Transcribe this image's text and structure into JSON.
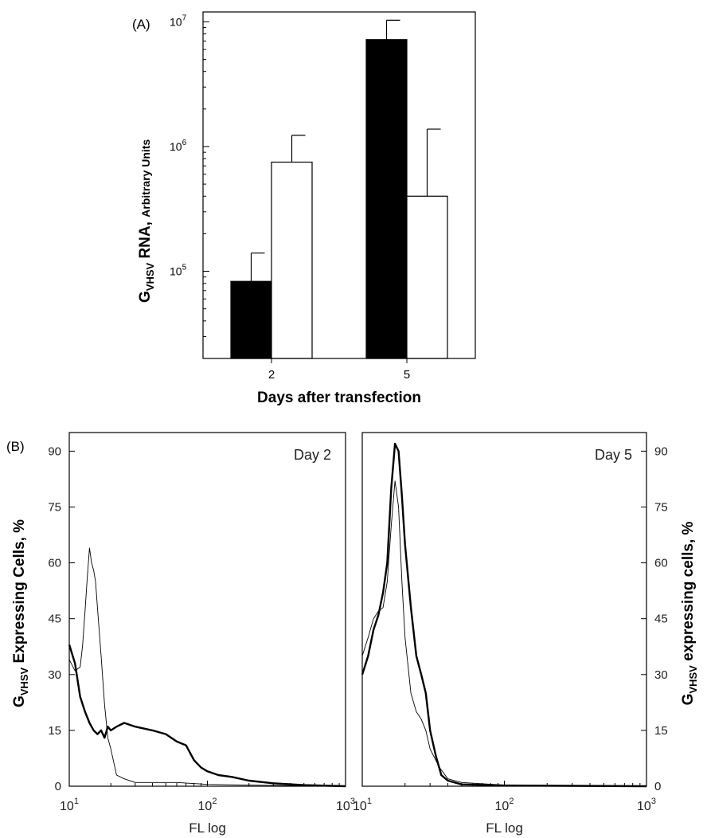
{
  "chart_data": [
    {
      "panel_label": "(A)",
      "type": "bar",
      "categories": [
        "2",
        "5"
      ],
      "yscale": "log",
      "ylim": [
        20000,
        12000000
      ],
      "ytick_values": [
        100000,
        1000000,
        10000000
      ],
      "ytick_base": "10",
      "ytick_exponents": [
        "5",
        "6",
        "7"
      ],
      "ylabel": {
        "main": "G",
        "sub": "VHSV",
        "rest": " RNA, ",
        "small": "Arbitrary Units"
      },
      "xlabel": "Days after transfection",
      "series": [
        {
          "fill": "#000000",
          "values": [
            83000,
            7200000
          ],
          "error_upper": [
            140000,
            10300000
          ]
        },
        {
          "fill": "#ffffff",
          "values": [
            750000,
            400000
          ],
          "error_upper": [
            1230000,
            1380000
          ]
        }
      ]
    },
    {
      "panel_label": "(B)",
      "type": "line",
      "annotation": "Day 2",
      "xscale": "log",
      "xlim": [
        10,
        1000
      ],
      "ylim": [
        0,
        95
      ],
      "xtick_values": [
        10,
        100,
        1000
      ],
      "xtick_exponents": [
        "1",
        "2",
        "3"
      ],
      "ytick_values": [
        0,
        15,
        30,
        45,
        60,
        75,
        90
      ],
      "xlabel": "FL log",
      "ylabel": {
        "main": "G",
        "sub": "VHSV",
        "rest": " Expressing Cells, %"
      },
      "series": [
        {
          "style": "thin",
          "x": [
            10,
            11,
            12,
            12.5,
            13,
            13.5,
            14,
            14.5,
            15,
            15.5,
            16,
            17,
            18,
            19,
            20,
            22,
            25,
            30,
            40,
            60,
            100,
            200,
            1000
          ],
          "y": [
            34,
            31,
            32,
            38,
            47,
            56,
            64,
            60,
            58,
            55,
            48,
            35,
            22,
            13,
            10,
            3,
            2,
            1,
            1,
            1,
            0.5,
            0.3,
            0
          ]
        },
        {
          "style": "thick",
          "x": [
            10,
            11,
            12,
            13,
            14,
            15,
            16,
            17,
            18,
            19,
            20,
            22,
            25,
            30,
            40,
            50,
            60,
            70,
            80,
            90,
            100,
            120,
            150,
            200,
            300,
            500,
            1000
          ],
          "y": [
            38,
            33,
            24,
            20,
            17,
            15,
            14,
            15,
            13,
            16,
            15,
            16,
            17,
            16,
            15,
            14,
            12,
            11,
            7,
            5,
            4,
            3,
            2.5,
            1.5,
            0.8,
            0.3,
            0
          ]
        }
      ]
    },
    {
      "type": "line",
      "annotation": "Day 5",
      "xscale": "log",
      "xlim": [
        10,
        1000
      ],
      "ylim": [
        0,
        95
      ],
      "xtick_values": [
        10,
        100,
        1000
      ],
      "xtick_exponents": [
        "1",
        "2",
        "3"
      ],
      "ytick_values": [
        0,
        15,
        30,
        45,
        60,
        75,
        90
      ],
      "xlabel": "FL log",
      "ylabel": {
        "main": "G",
        "sub": "VHSV",
        "rest": " expressing cells, %"
      },
      "series": [
        {
          "style": "thin",
          "x": [
            10,
            11,
            12,
            13,
            14,
            15,
            16,
            17,
            18,
            19,
            20,
            22,
            24,
            26,
            28,
            30,
            35,
            40,
            50,
            100,
            1000
          ],
          "y": [
            35,
            40,
            45,
            47,
            48,
            55,
            70,
            82,
            75,
            55,
            40,
            25,
            20,
            18,
            15,
            10,
            5,
            2,
            1,
            0.3,
            0
          ]
        },
        {
          "style": "thick",
          "x": [
            10,
            11,
            12,
            13,
            14,
            15,
            16,
            17,
            18,
            19,
            20,
            22,
            24,
            26,
            28,
            30,
            33,
            36,
            40,
            50,
            100,
            1000
          ],
          "y": [
            30,
            35,
            42,
            46,
            52,
            60,
            80,
            92,
            90,
            78,
            65,
            48,
            35,
            30,
            25,
            15,
            8,
            3,
            1.5,
            0.5,
            0.2,
            0
          ]
        }
      ]
    }
  ]
}
